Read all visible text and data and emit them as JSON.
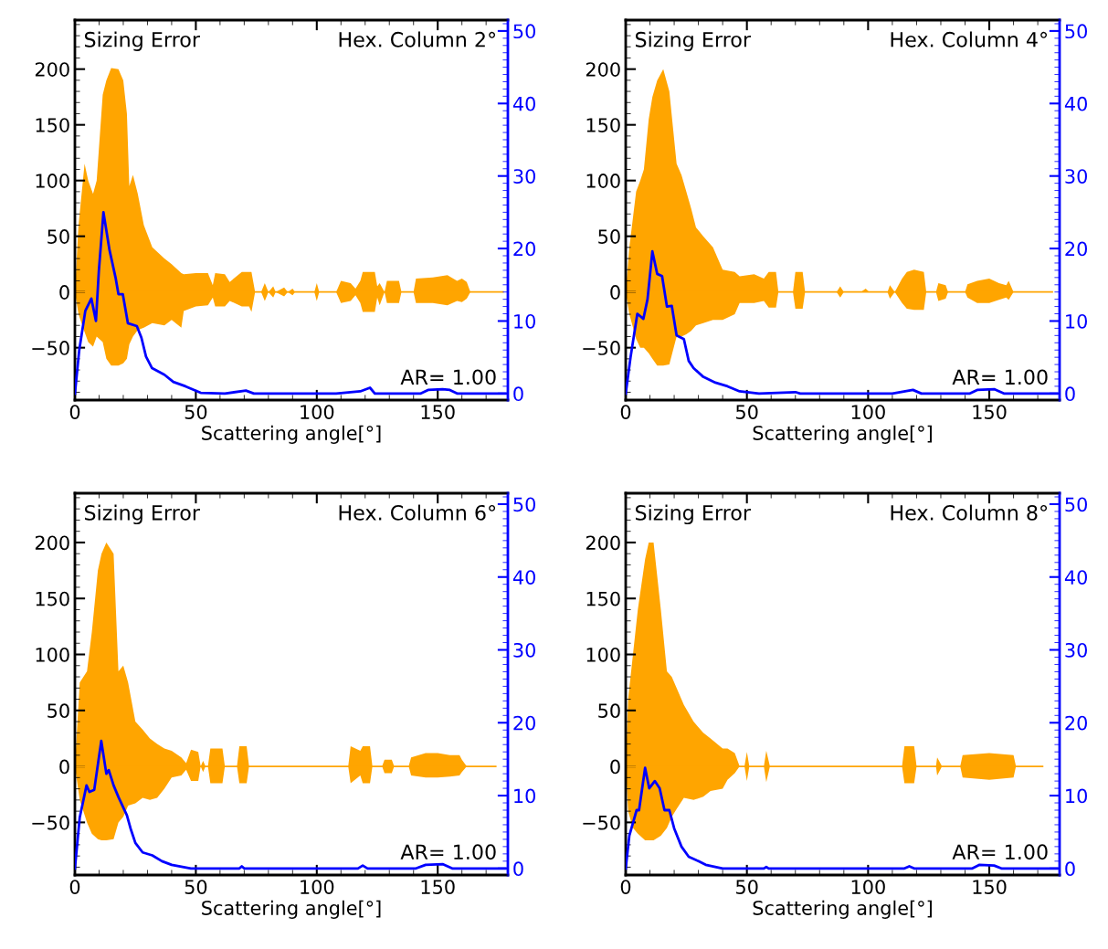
{
  "chart_data": [
    {
      "type": "line",
      "xlabel": "Scattering angle[°]",
      "annotations": [
        "Sizing Error",
        "Hex. Column 2°",
        "AR= 1.00"
      ],
      "xlim": [
        0,
        179
      ],
      "xticks": [
        0,
        50,
        100,
        150
      ],
      "ylim": [
        -97,
        244
      ],
      "yticks": [
        -50,
        0,
        50,
        100,
        150,
        200
      ],
      "y2lim": [
        -0.9,
        51.5
      ],
      "y2ticks": [
        0,
        10,
        20,
        30,
        40,
        50
      ],
      "grid": false,
      "legend": false,
      "series": [
        {
          "color": "#ffa500",
          "x": [
            0,
            1.5,
            4,
            5.5,
            7.5,
            9,
            11.5,
            13,
            15,
            18,
            20,
            21.5,
            22.5,
            24,
            26,
            28.5,
            32,
            37,
            40,
            44,
            45,
            50,
            55,
            57,
            58,
            62,
            64,
            69,
            72,
            73,
            74.5,
            77,
            78.5,
            80,
            82,
            83,
            86.5,
            88,
            90,
            91,
            99,
            100,
            101,
            108,
            110,
            114,
            116,
            118,
            119,
            124,
            125,
            126,
            128,
            129,
            134,
            135,
            140,
            141,
            148,
            154,
            158,
            160,
            162,
            163.5,
            177
          ],
          "values": [
            0,
            0,
            0,
            0,
            0,
            0,
            0,
            0,
            0,
            0,
            0,
            0,
            0,
            0,
            0,
            0,
            0,
            0,
            0,
            0,
            0,
            0,
            0,
            0,
            0,
            0,
            0,
            0,
            0,
            0,
            0,
            0,
            0,
            0,
            0,
            0,
            0,
            0,
            0,
            0,
            0,
            0,
            0,
            0,
            0,
            0,
            0,
            0,
            0,
            0,
            0,
            0,
            0,
            0,
            0,
            0,
            0,
            0,
            0,
            0,
            0,
            0,
            0,
            0,
            0
          ],
          "upper": [
            0,
            60,
            115,
            100,
            88,
            100,
            177,
            190,
            201,
            200,
            190,
            160,
            95,
            105,
            88,
            60,
            40,
            30,
            25,
            17,
            16,
            17,
            17,
            6,
            17,
            16,
            9,
            18,
            18,
            18,
            0,
            0,
            8,
            0,
            5,
            0,
            4,
            0,
            3,
            0,
            0,
            8,
            0,
            0,
            10,
            8,
            3,
            10,
            18,
            18,
            5,
            8,
            0,
            10,
            10,
            0,
            0,
            12,
            13,
            15,
            10,
            12,
            9,
            0,
            0
          ],
          "lower": [
            0,
            -20,
            -36,
            -45,
            -49,
            -40,
            -45,
            -60,
            -66,
            -66,
            -64,
            -60,
            -47,
            -40,
            -34,
            -32,
            -28,
            -30,
            -25,
            -32,
            -17,
            -13,
            -12,
            -5,
            -13,
            -13,
            -8,
            -13,
            -13,
            -18,
            0,
            0,
            -8,
            0,
            -5,
            0,
            -4,
            0,
            -3,
            0,
            0,
            -8,
            0,
            0,
            -10,
            -8,
            -3,
            -10,
            -18,
            -18,
            -5,
            -12,
            0,
            -10,
            -10,
            0,
            0,
            -10,
            -10,
            -12,
            -8,
            -9,
            -6,
            0,
            0
          ]
        },
        {
          "color": "#0000ff",
          "axis": "y2",
          "x": [
            0,
            1.8,
            4.3,
            6.8,
            8.7,
            9.9,
            11.8,
            14.3,
            16.8,
            18,
            19.8,
            21.9,
            25.6,
            27.5,
            29.4,
            31.9,
            37,
            40.7,
            45.7,
            52,
            62,
            70.7,
            74,
            108,
            118,
            122,
            124,
            143,
            146,
            152,
            155,
            158,
            178
          ],
          "values": [
            0,
            6,
            11.4,
            13.1,
            10,
            16.9,
            25,
            19.8,
            16,
            13.7,
            13.7,
            9.7,
            9.3,
            7.7,
            5.1,
            3.5,
            2.6,
            1.6,
            1,
            0.1,
            0,
            0.4,
            0,
            0,
            0.3,
            0.8,
            0,
            0,
            0.5,
            0.6,
            0.5,
            0,
            0
          ]
        }
      ]
    },
    {
      "type": "line",
      "xlabel": "Scattering angle[°]",
      "annotations": [
        "Sizing Error",
        "Hex. Column 4°",
        "AR= 1.00"
      ],
      "xlim": [
        0,
        179
      ],
      "xticks": [
        0,
        50,
        100,
        150
      ],
      "ylim": [
        -97,
        244
      ],
      "yticks": [
        -50,
        0,
        50,
        100,
        150,
        200
      ],
      "y2lim": [
        -0.9,
        51.5
      ],
      "y2ticks": [
        0,
        10,
        20,
        30,
        40,
        50
      ],
      "grid": false,
      "legend": false,
      "series": [
        {
          "color": "#ffa500",
          "x": [
            0,
            1.5,
            4.3,
            6,
            7.5,
            9.5,
            11,
            13,
            15.5,
            18,
            21,
            23,
            25,
            27,
            29,
            32,
            36,
            40,
            45,
            47,
            53,
            57,
            59,
            62,
            63,
            69,
            70,
            73,
            74,
            87,
            88.5,
            90,
            97,
            99,
            100.5,
            108,
            109,
            111,
            114,
            116,
            119,
            123,
            124,
            128,
            129,
            132,
            133,
            140,
            141,
            145,
            150,
            154,
            157,
            158,
            160,
            176
          ],
          "values": [
            0,
            0,
            0,
            0,
            0,
            0,
            0,
            0,
            0,
            0,
            0,
            0,
            0,
            0,
            0,
            0,
            0,
            0,
            0,
            0,
            0,
            0,
            0,
            0,
            0,
            0,
            0,
            0,
            0,
            0,
            0,
            0,
            0,
            0,
            0,
            0,
            0,
            0,
            0,
            0,
            0,
            0,
            0,
            0,
            0,
            0,
            0,
            0,
            0,
            0,
            0,
            0,
            0,
            0,
            0,
            0
          ],
          "upper": [
            0,
            40,
            90,
            100,
            110,
            155,
            175,
            190,
            200,
            180,
            115,
            105,
            90,
            75,
            58,
            50,
            40,
            20,
            18,
            14,
            16,
            12,
            18,
            18,
            0,
            0,
            18,
            18,
            0,
            0,
            5,
            0,
            0,
            3,
            0,
            0,
            6,
            0,
            12,
            18,
            20,
            18,
            0,
            0,
            8,
            6,
            0,
            0,
            7,
            10,
            12,
            8,
            6,
            10,
            0,
            0
          ],
          "lower": [
            0,
            -20,
            -42,
            -50,
            -50,
            -55,
            -60,
            -66,
            -66,
            -65,
            -40,
            -40,
            -38,
            -35,
            -30,
            -28,
            -25,
            -25,
            -20,
            -10,
            -10,
            -8,
            -14,
            -14,
            0,
            0,
            -15,
            -15,
            0,
            0,
            -5,
            0,
            0,
            0,
            0,
            0,
            -6,
            0,
            -10,
            -15,
            -16,
            -16,
            0,
            0,
            -8,
            -6,
            0,
            0,
            -5,
            -10,
            -10,
            -7,
            -5,
            -7,
            0,
            0
          ]
        },
        {
          "color": "#0000ff",
          "axis": "y2",
          "x": [
            0,
            2,
            4.8,
            7.3,
            9,
            11,
            13,
            15,
            17,
            19,
            21,
            24,
            26,
            28,
            32,
            37,
            42,
            47,
            55,
            70,
            72,
            110,
            118.5,
            122,
            142,
            145,
            152,
            156,
            178
          ],
          "values": [
            0,
            5,
            11,
            10.3,
            13,
            19.6,
            16.5,
            16.2,
            12,
            12.1,
            8,
            7.5,
            4.5,
            3.5,
            2.3,
            1.5,
            1,
            0.3,
            0,
            0.2,
            0,
            0,
            0.5,
            0,
            0,
            0.5,
            0.6,
            0,
            0
          ]
        }
      ]
    },
    {
      "type": "line",
      "xlabel": "Scattering angle[°]",
      "annotations": [
        "Sizing Error",
        "Hex. Column 6°",
        "AR= 1.00"
      ],
      "xlim": [
        0,
        179
      ],
      "xticks": [
        0,
        50,
        100,
        150
      ],
      "ylim": [
        -97,
        244
      ],
      "yticks": [
        -50,
        0,
        50,
        100,
        150,
        200
      ],
      "y2lim": [
        -0.9,
        51.5
      ],
      "y2ticks": [
        0,
        10,
        20,
        30,
        40,
        50
      ],
      "grid": false,
      "legend": false,
      "series": [
        {
          "color": "#ffa500",
          "x": [
            0,
            2,
            5,
            7,
            9.5,
            11,
            13,
            16,
            18,
            20,
            22,
            25,
            28,
            31,
            34,
            37,
            40,
            44,
            46,
            48,
            51,
            52,
            53,
            54,
            55,
            56,
            61,
            62,
            67,
            68,
            71,
            72,
            113,
            114,
            118,
            119,
            122,
            123,
            127,
            128,
            131,
            132,
            138,
            139,
            145,
            150,
            155,
            159,
            160,
            162,
            174
          ],
          "values": [
            0,
            0,
            0,
            0,
            0,
            0,
            0,
            0,
            0,
            0,
            0,
            0,
            0,
            0,
            0,
            0,
            0,
            0,
            0,
            0,
            0,
            0,
            0,
            0,
            0,
            0,
            0,
            0,
            0,
            0,
            0,
            0,
            0,
            0,
            0,
            0,
            0,
            0,
            0,
            0,
            0,
            0,
            0,
            0,
            0,
            0,
            0,
            0,
            0,
            0,
            0
          ],
          "upper": [
            0,
            75,
            85,
            120,
            175,
            190,
            200,
            190,
            85,
            90,
            75,
            40,
            33,
            25,
            20,
            16,
            14,
            8,
            3,
            15,
            13,
            0,
            5,
            0,
            0,
            16,
            16,
            0,
            0,
            18,
            18,
            0,
            0,
            18,
            14,
            18,
            18,
            0,
            0,
            6,
            6,
            0,
            0,
            8,
            12,
            12,
            10,
            10,
            6,
            0,
            0
          ],
          "lower": [
            0,
            -30,
            -50,
            -60,
            -65,
            -66,
            -66,
            -65,
            -50,
            -45,
            -35,
            -33,
            -28,
            -30,
            -28,
            -20,
            -10,
            -8,
            -3,
            -13,
            -13,
            0,
            -5,
            0,
            0,
            -15,
            -15,
            0,
            0,
            -15,
            -15,
            0,
            0,
            -15,
            -8,
            -15,
            -15,
            0,
            0,
            -6,
            -6,
            0,
            0,
            -8,
            -10,
            -10,
            -9,
            -8,
            -5,
            0,
            0
          ]
        },
        {
          "color": "#0000ff",
          "axis": "y2",
          "x": [
            0,
            2,
            4.8,
            6,
            8,
            10.9,
            13,
            14,
            16,
            18,
            21.5,
            23,
            25,
            28,
            32,
            36,
            40,
            48,
            68,
            69,
            70,
            117,
            119,
            121,
            141,
            145,
            152,
            156,
            178
          ],
          "values": [
            0,
            7,
            11.4,
            10.5,
            10.8,
            17.5,
            13,
            13.5,
            11.4,
            9.8,
            7.3,
            5.5,
            3.5,
            2.2,
            1.8,
            1,
            0.5,
            0,
            0,
            0.3,
            0,
            0,
            0.4,
            0,
            0,
            0.5,
            0.6,
            0,
            0
          ]
        }
      ]
    },
    {
      "type": "line",
      "xlabel": "Scattering angle[°]",
      "annotations": [
        "Sizing Error",
        "Hex. Column 8°",
        "AR= 1.00"
      ],
      "xlim": [
        0,
        179
      ],
      "xticks": [
        0,
        50,
        100,
        150
      ],
      "ylim": [
        -97,
        244
      ],
      "yticks": [
        -50,
        0,
        50,
        100,
        150,
        200
      ],
      "y2lim": [
        -0.9,
        51.5
      ],
      "y2ticks": [
        0,
        10,
        20,
        30,
        40,
        50
      ],
      "grid": false,
      "legend": false,
      "series": [
        {
          "color": "#ffa500",
          "x": [
            0,
            1,
            3,
            5,
            8,
            9.5,
            11.5,
            14.5,
            17,
            19,
            21,
            24,
            28,
            32,
            35,
            40,
            42,
            45,
            47,
            49,
            50,
            51,
            57,
            58,
            59.5,
            114,
            115,
            119,
            120,
            128,
            128.5,
            130.5,
            138,
            139,
            150,
            160,
            161,
            172
          ],
          "values": [
            0,
            0,
            0,
            0,
            0,
            0,
            0,
            0,
            0,
            0,
            0,
            0,
            0,
            0,
            0,
            0,
            0,
            0,
            0,
            0,
            0,
            0,
            0,
            0,
            0,
            0,
            0,
            0,
            0,
            0,
            0,
            0,
            0,
            0,
            0,
            0,
            0,
            0
          ],
          "upper": [
            0,
            60,
            100,
            140,
            185,
            200,
            200,
            140,
            85,
            80,
            70,
            55,
            40,
            30,
            25,
            16,
            16,
            12,
            0,
            0,
            13,
            0,
            0,
            14,
            0,
            0,
            18,
            18,
            0,
            0,
            8,
            0,
            0,
            10,
            12,
            10,
            0,
            0
          ],
          "lower": [
            0,
            -40,
            -55,
            -60,
            -66,
            -66,
            -66,
            -62,
            -55,
            -45,
            -38,
            -28,
            -30,
            -27,
            -22,
            -20,
            -12,
            -6,
            0,
            0,
            -13,
            0,
            0,
            -14,
            0,
            0,
            -15,
            -15,
            0,
            0,
            -8,
            0,
            0,
            -10,
            -12,
            -10,
            0,
            0
          ]
        },
        {
          "color": "#0000ff",
          "axis": "y2",
          "x": [
            0,
            1.5,
            4.5,
            5.5,
            8,
            9.7,
            12,
            14,
            16,
            18,
            20,
            23,
            26,
            30,
            33,
            40,
            57,
            58,
            59,
            115,
            117,
            119,
            143,
            146,
            152,
            155,
            178
          ],
          "values": [
            0,
            4.5,
            8,
            8,
            13.8,
            11,
            12,
            11,
            8,
            8,
            5.5,
            3,
            1.6,
            1,
            0.5,
            0,
            0,
            0.2,
            0,
            0,
            0.3,
            0,
            0,
            0.5,
            0.4,
            0,
            0
          ]
        }
      ]
    }
  ]
}
